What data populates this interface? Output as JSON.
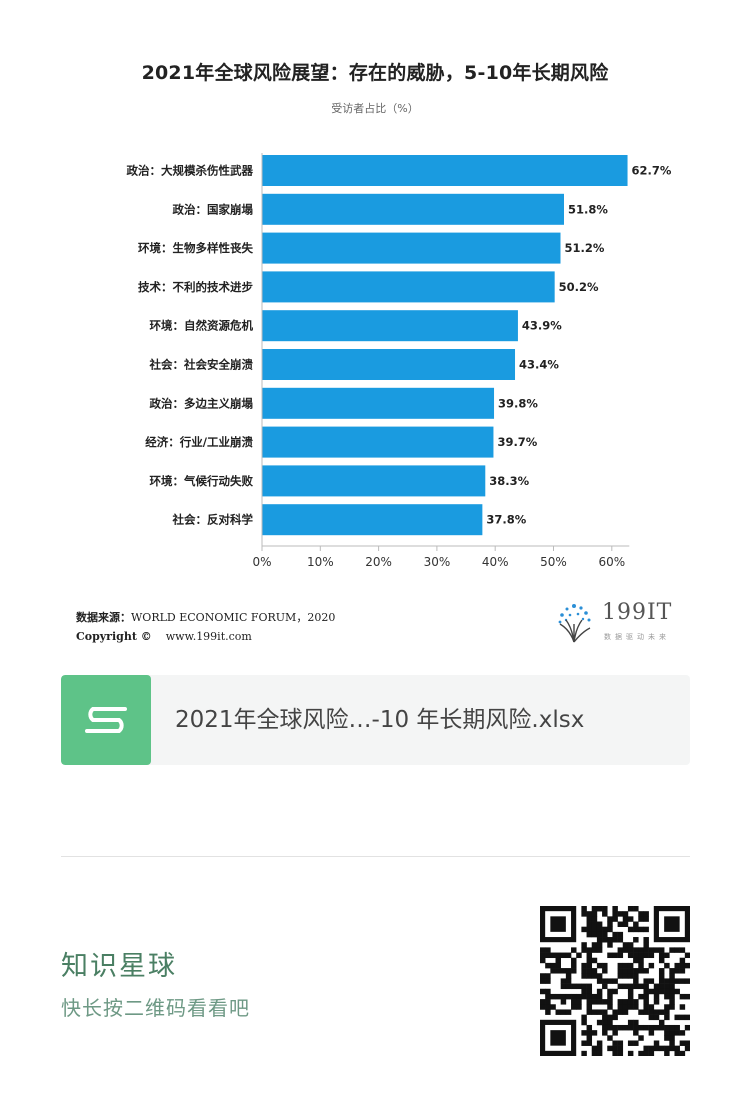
{
  "chart_data": {
    "type": "bar",
    "orientation": "horizontal",
    "title": "2021年全球风险展望：存在的威胁，5-10年长期风险",
    "subtitle": "受访者占比（%）",
    "categories": [
      "政治：大规模杀伤性武器",
      "政治：国家崩塌",
      "环境：生物多样性丧失",
      "技术：不利的技术进步",
      "环境：自然资源危机",
      "社会：社会安全崩溃",
      "政治：多边主义崩塌",
      "经济：行业/工业崩溃",
      "环境：气候行动失败",
      "社会：反对科学"
    ],
    "values": [
      62.7,
      51.8,
      51.2,
      50.2,
      43.9,
      43.4,
      39.8,
      39.7,
      38.3,
      37.8
    ],
    "value_labels": [
      "62.7%",
      "51.8%",
      "51.2%",
      "50.2%",
      "43.9%",
      "43.4%",
      "39.8%",
      "39.7%",
      "38.3%",
      "37.8%"
    ],
    "xticks": [
      0,
      10,
      20,
      30,
      40,
      50,
      60
    ],
    "xtick_labels": [
      "0%",
      "10%",
      "20%",
      "30%",
      "40%",
      "50%",
      "60%"
    ],
    "xlim": [
      0,
      63
    ],
    "grid": false,
    "bar_color": "#1a9be0"
  },
  "source": {
    "label": "数据来源：",
    "text": "WORLD ECONOMIC FORUM，2020"
  },
  "copyright": {
    "label": "Copyright ©",
    "url": "www.199it.com"
  },
  "logo": {
    "text": "199IT",
    "tagline": "数据驱动未来"
  },
  "file_card": {
    "icon": "spreadsheet-s-icon",
    "icon_color": "#5ec388",
    "filename": "2021年全球风险…-10 年长期风险.xlsx"
  },
  "footer": {
    "title": "知识星球",
    "subtitle": "快长按二维码看看吧"
  }
}
